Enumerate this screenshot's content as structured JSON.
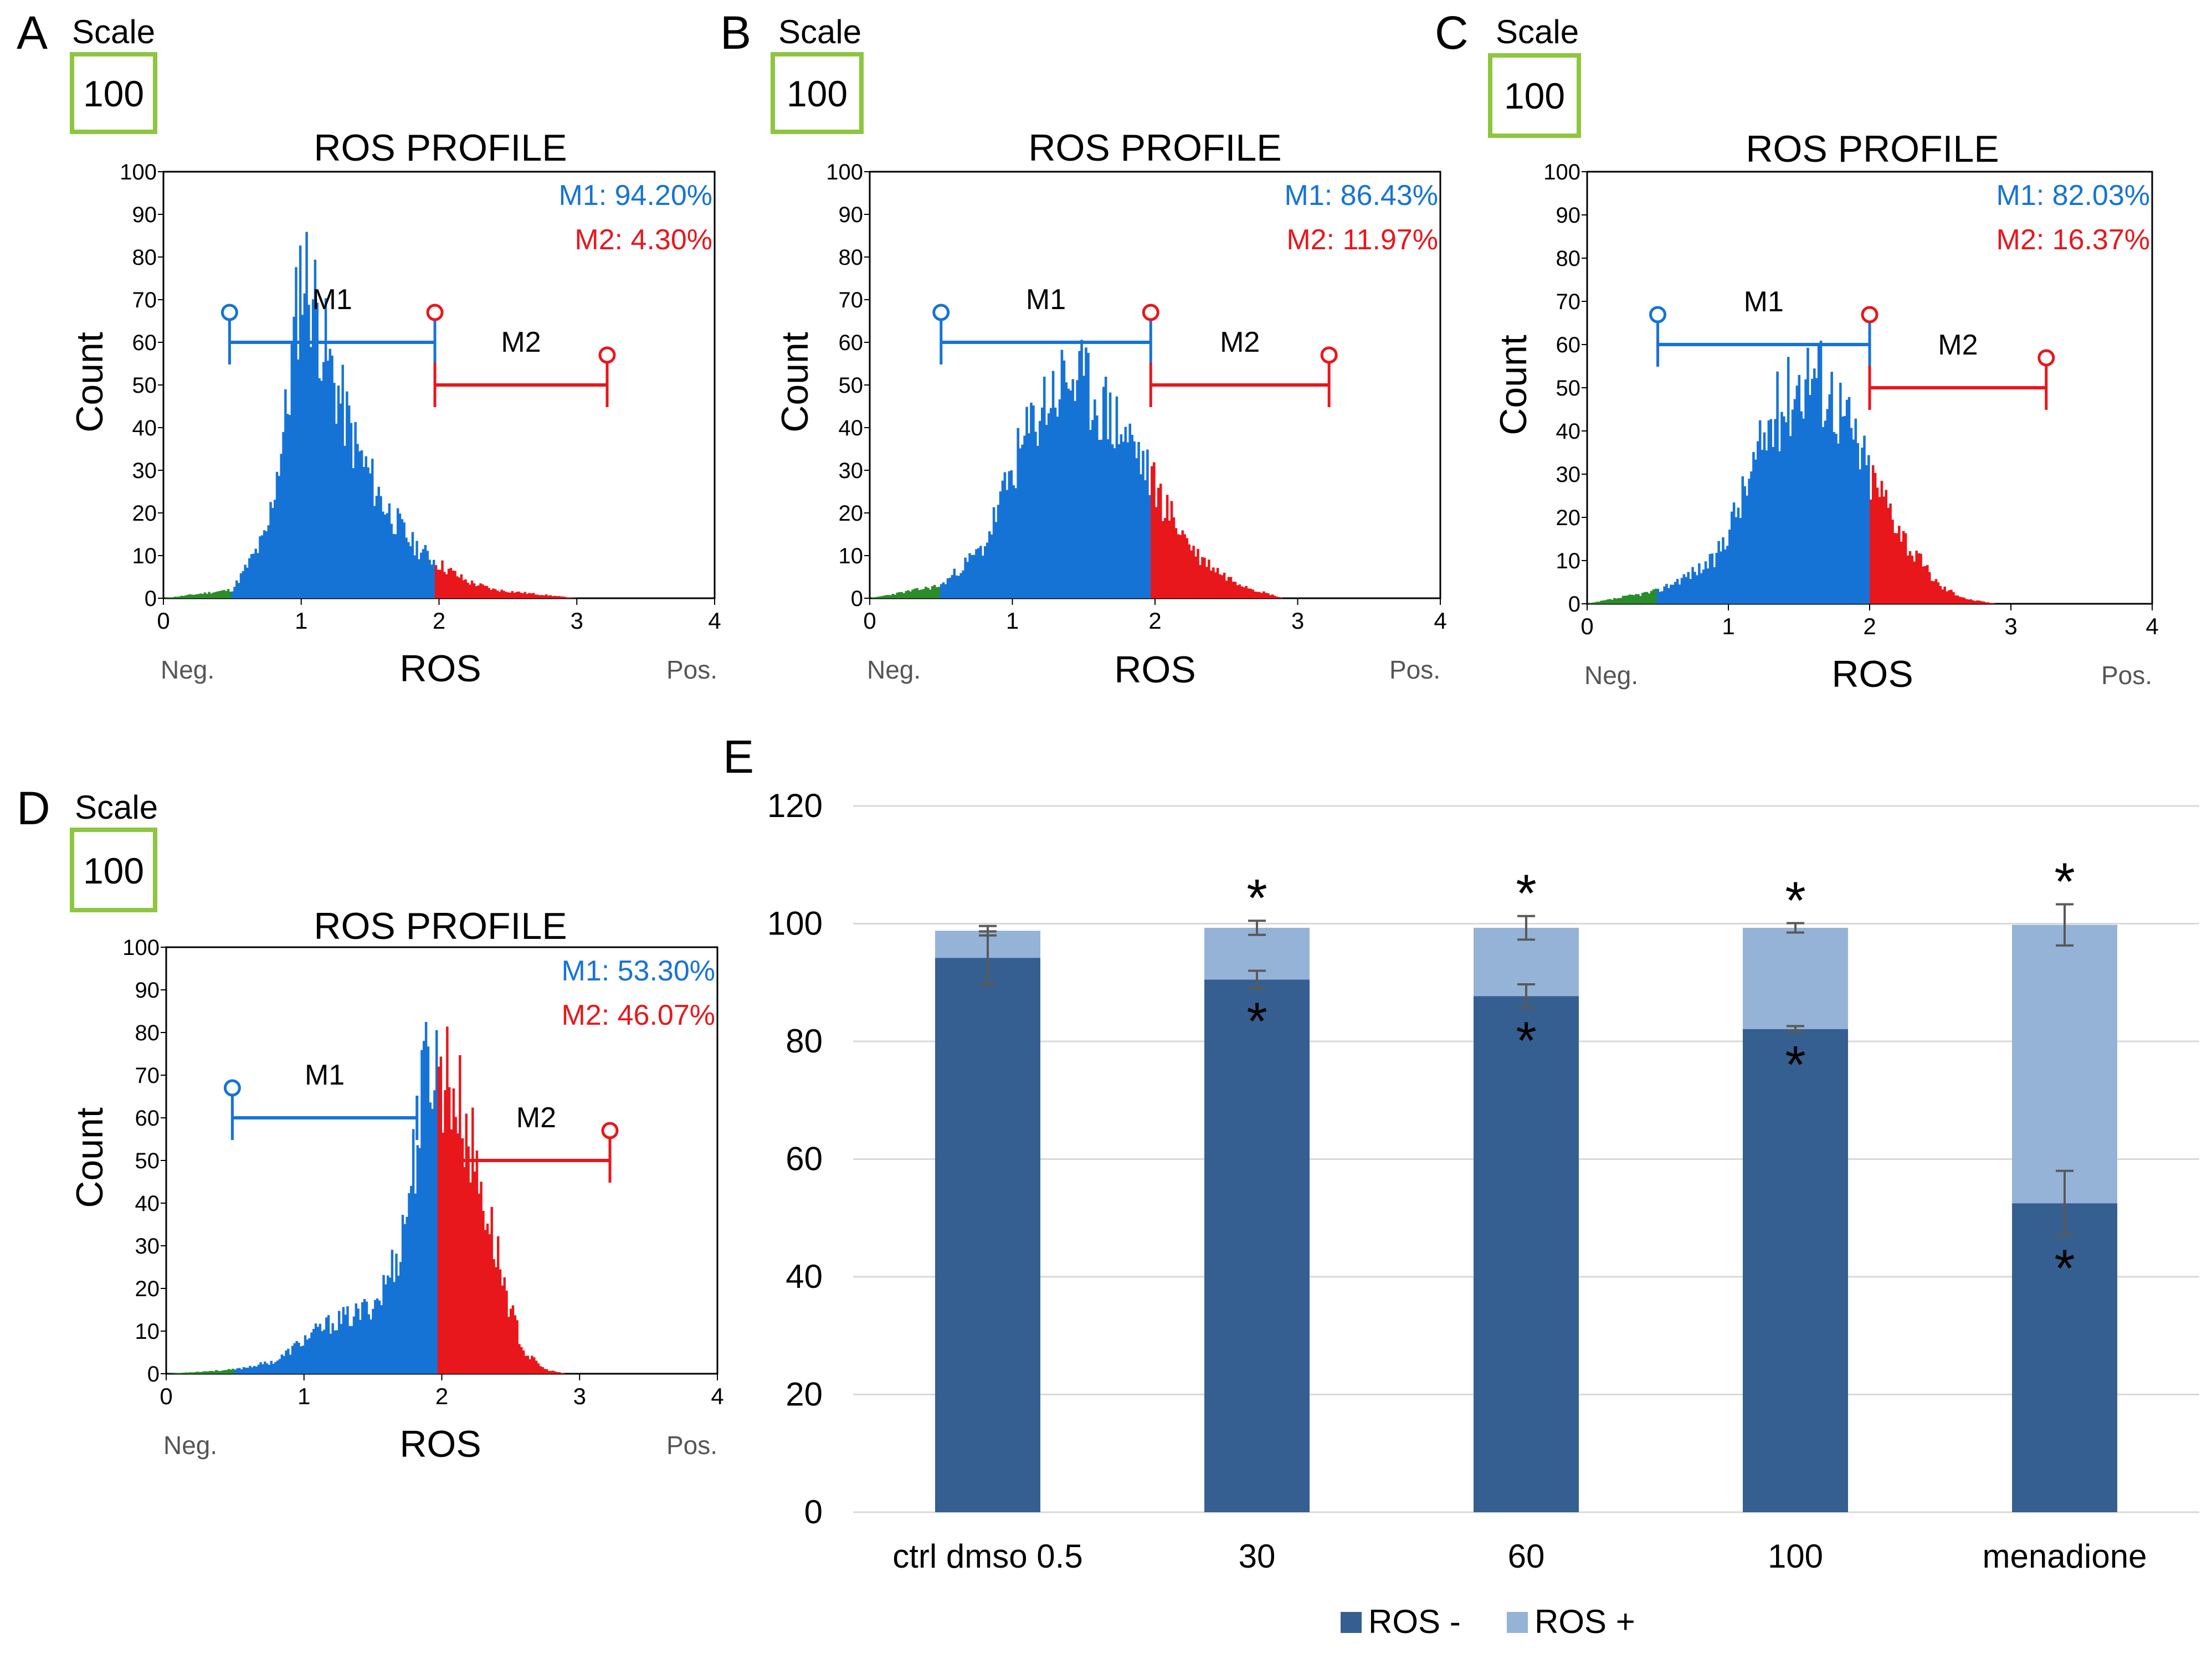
{
  "colors": {
    "m1": "#1673d6",
    "m2": "#e8171b",
    "neg": "#2a8c2a",
    "scale_box": "#8dc63f",
    "ros_neg": "#355f91",
    "ros_pos": "#95b3d7",
    "grid": "#d9d9d9",
    "error": "#595959"
  },
  "chart_data": [
    {
      "panel": "A",
      "type": "histogram",
      "title": "ROS PROFILE",
      "xlabel": "ROS",
      "ylabel": "Count",
      "scale_label": "Scale",
      "scale_value": "100",
      "x_ticks": [
        "0",
        "1",
        "2",
        "3",
        "4"
      ],
      "y_ticks": [
        "0",
        "10",
        "20",
        "30",
        "40",
        "50",
        "60",
        "70",
        "80",
        "90",
        "100"
      ],
      "xlim": [
        0,
        4
      ],
      "ylim": [
        0,
        100
      ],
      "neg_label": "Neg.",
      "pos_label": "Pos.",
      "m1_name": "M1",
      "m2_name": "M2",
      "m1_text": "M1: 94.20%",
      "m2_text": "M2: 4.30%",
      "m1_range": [
        0.48,
        1.97
      ],
      "m1_y": 60,
      "m2_range": [
        1.97,
        3.22
      ],
      "m2_y": 50,
      "gate": 1.97,
      "shape": [
        [
          0,
          0
        ],
        [
          0.5,
          2
        ],
        [
          0.75,
          15
        ],
        [
          0.9,
          45
        ],
        [
          1.0,
          78
        ],
        [
          1.08,
          72
        ],
        [
          1.2,
          55
        ],
        [
          1.4,
          35
        ],
        [
          1.6,
          22
        ],
        [
          1.8,
          13
        ],
        [
          2.0,
          8
        ],
        [
          2.2,
          4
        ],
        [
          2.4,
          2
        ],
        [
          2.7,
          1
        ],
        [
          3.0,
          0
        ],
        [
          4.0,
          0
        ]
      ],
      "seed": 11
    },
    {
      "panel": "B",
      "type": "histogram",
      "title": "ROS PROFILE",
      "xlabel": "ROS",
      "ylabel": "Count",
      "scale_label": "Scale",
      "scale_value": "100",
      "x_ticks": [
        "0",
        "1",
        "2",
        "3",
        "4"
      ],
      "y_ticks": [
        "0",
        "10",
        "20",
        "30",
        "40",
        "50",
        "60",
        "70",
        "80",
        "90",
        "100"
      ],
      "xlim": [
        0,
        4
      ],
      "ylim": [
        0,
        100
      ],
      "neg_label": "Neg.",
      "pos_label": "Pos.",
      "m1_name": "M1",
      "m2_name": "M2",
      "m1_text": "M1: 86.43%",
      "m2_text": "M2: 11.97%",
      "m1_range": [
        0.5,
        1.97
      ],
      "m1_y": 60,
      "m2_range": [
        1.97,
        3.22
      ],
      "m2_y": 50,
      "gate": 1.97,
      "shape": [
        [
          0,
          0
        ],
        [
          0.5,
          3
        ],
        [
          0.8,
          12
        ],
        [
          1.0,
          30
        ],
        [
          1.2,
          45
        ],
        [
          1.4,
          52
        ],
        [
          1.55,
          48
        ],
        [
          1.7,
          42
        ],
        [
          1.85,
          36
        ],
        [
          1.97,
          28
        ],
        [
          2.1,
          20
        ],
        [
          2.3,
          10
        ],
        [
          2.5,
          5
        ],
        [
          2.7,
          2
        ],
        [
          2.9,
          0
        ],
        [
          4.0,
          0
        ]
      ],
      "seed": 23
    },
    {
      "panel": "C",
      "type": "histogram",
      "title": "ROS PROFILE",
      "xlabel": "ROS",
      "ylabel": "Count",
      "scale_label": "Scale",
      "scale_value": "100",
      "x_ticks": [
        "0",
        "1",
        "2",
        "3",
        "4"
      ],
      "y_ticks": [
        "0",
        "10",
        "20",
        "30",
        "40",
        "50",
        "60",
        "70",
        "80",
        "90",
        "100"
      ],
      "xlim": [
        0,
        4
      ],
      "ylim": [
        0,
        100
      ],
      "neg_label": "Neg.",
      "pos_label": "Pos.",
      "m1_name": "M1",
      "m2_name": "M2",
      "m1_text": "M1: 82.03%",
      "m2_text": "M2: 16.37%",
      "m1_range": [
        0.5,
        2.0
      ],
      "m1_y": 60,
      "m2_range": [
        2.0,
        3.25
      ],
      "m2_y": 50,
      "gate": 2.0,
      "shape": [
        [
          0,
          0
        ],
        [
          0.5,
          3
        ],
        [
          0.9,
          10
        ],
        [
          1.1,
          25
        ],
        [
          1.3,
          42
        ],
        [
          1.5,
          52
        ],
        [
          1.6,
          55
        ],
        [
          1.75,
          48
        ],
        [
          1.9,
          38
        ],
        [
          2.0,
          30
        ],
        [
          2.15,
          22
        ],
        [
          2.3,
          12
        ],
        [
          2.5,
          4
        ],
        [
          2.7,
          1
        ],
        [
          2.9,
          0
        ],
        [
          4.0,
          0
        ]
      ],
      "seed": 37
    },
    {
      "panel": "D",
      "type": "histogram",
      "title": "ROS PROFILE",
      "xlabel": "ROS",
      "ylabel": "Count",
      "scale_label": "Scale",
      "scale_value": "100",
      "x_ticks": [
        "0",
        "1",
        "2",
        "3",
        "4"
      ],
      "y_ticks": [
        "0",
        "10",
        "20",
        "30",
        "40",
        "50",
        "60",
        "70",
        "80",
        "90",
        "100"
      ],
      "xlim": [
        0,
        4
      ],
      "ylim": [
        0,
        100
      ],
      "neg_label": "Neg.",
      "pos_label": "Pos.",
      "m1_name": "M1",
      "m2_name": "M2",
      "m1_text": "M1: 53.30%",
      "m2_text": "M2: 46.07%",
      "m1_range": [
        0.48,
        1.82
      ],
      "m1_y": 60,
      "m2_range": [
        2.15,
        3.22
      ],
      "m2_y": 50,
      "gate": 1.97,
      "shape": [
        [
          0,
          0
        ],
        [
          0.5,
          1
        ],
        [
          0.8,
          3
        ],
        [
          1.0,
          8
        ],
        [
          1.2,
          12
        ],
        [
          1.4,
          14
        ],
        [
          1.55,
          18
        ],
        [
          1.7,
          30
        ],
        [
          1.82,
          55
        ],
        [
          1.9,
          75
        ],
        [
          1.97,
          72
        ],
        [
          2.05,
          70
        ],
        [
          2.2,
          55
        ],
        [
          2.35,
          35
        ],
        [
          2.5,
          15
        ],
        [
          2.6,
          5
        ],
        [
          2.75,
          1
        ],
        [
          2.9,
          0
        ],
        [
          4.0,
          0
        ]
      ],
      "seed": 53
    },
    {
      "panel": "E",
      "type": "bar",
      "stacked": true,
      "categories": [
        "ctrl dmso 0.5",
        "30",
        "60",
        "100",
        "menadione"
      ],
      "series": [
        {
          "name": "ROS -",
          "values": [
            94.2,
            90.5,
            87.7,
            82.1,
            52.5
          ],
          "errors": [
            4.5,
            1.5,
            2.0,
            0.5,
            5.5
          ]
        },
        {
          "name": "ROS +",
          "values": [
            4.6,
            8.8,
            11.6,
            17.2,
            47.3
          ],
          "errors": [
            0.8,
            1.2,
            2.0,
            0.8,
            3.5
          ]
        }
      ],
      "ylim": [
        0,
        120
      ],
      "y_ticks": [
        "0",
        "20",
        "40",
        "60",
        "80",
        "100",
        "120"
      ],
      "significance_marker": "*",
      "significant_neg": [
        false,
        true,
        true,
        true,
        true
      ],
      "significant_pos": [
        false,
        true,
        true,
        true,
        true
      ],
      "legend_position": "bottom"
    }
  ]
}
